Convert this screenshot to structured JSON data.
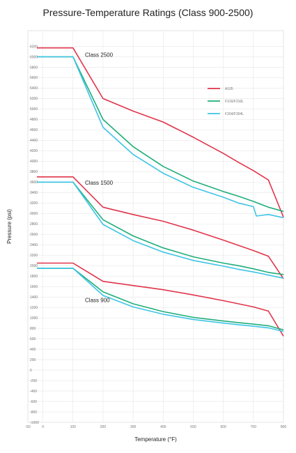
{
  "chart_data": {
    "type": "line",
    "title": "Pressure-Temperature Ratings (Class 900-2500)",
    "xlabel": "Temperature (°F)",
    "ylabel": "Pressure (psi)",
    "xlim": [
      -50,
      800
    ],
    "ylim": [
      -1000,
      6500
    ],
    "x_ticks": [
      -50,
      0,
      100,
      200,
      300,
      400,
      500,
      600,
      700,
      800
    ],
    "x_tick_labels": [
      "-50",
      "0",
      "100",
      "200",
      "300",
      "400",
      "500",
      "600",
      "700",
      "800"
    ],
    "y_ticks": [
      -1000,
      -800,
      -600,
      -400,
      -200,
      0,
      200,
      400,
      600,
      800,
      1000,
      1200,
      1400,
      1600,
      1800,
      2000,
      2200,
      2400,
      2600,
      2800,
      3000,
      3200,
      3400,
      3600,
      3800,
      4000,
      4200,
      4400,
      4600,
      4800,
      5000,
      5200,
      5400,
      5600,
      5800,
      6000,
      6200
    ],
    "grid": true,
    "legend_position": "top-right",
    "annotations": [
      {
        "text": "Class 2500",
        "x": 140,
        "y": 6000
      },
      {
        "text": "Class 1500",
        "x": 140,
        "y": 3550
      },
      {
        "text": "Class 900",
        "x": 140,
        "y": 1300
      }
    ],
    "series": [
      {
        "name": "A105",
        "color": "#e0344a",
        "group": "Class 2500",
        "x": [
          -20,
          100,
          200,
          300,
          400,
          500,
          600,
          650,
          700,
          750,
          800
        ],
        "values": [
          6170,
          6170,
          5200,
          4960,
          4750,
          4460,
          4150,
          3980,
          3820,
          3640,
          2930
        ]
      },
      {
        "name": "F316/F316L",
        "color": "#1fae7a",
        "group": "Class 2500",
        "x": [
          -20,
          100,
          200,
          300,
          400,
          500,
          600,
          650,
          700,
          750,
          800
        ],
        "values": [
          6000,
          6000,
          4800,
          4280,
          3900,
          3620,
          3420,
          3330,
          3230,
          3120,
          3040
        ]
      },
      {
        "name": "F304/F304L",
        "color": "#3ec4e6",
        "group": "Class 2500",
        "x": [
          -20,
          100,
          200,
          300,
          400,
          500,
          600,
          650,
          700,
          710,
          750,
          800
        ],
        "values": [
          6000,
          6000,
          4650,
          4130,
          3770,
          3500,
          3310,
          3200,
          3130,
          2950,
          2980,
          2920
        ]
      },
      {
        "name": "",
        "color": "#e0344a",
        "group": "Class 1500",
        "x": [
          -20,
          100,
          200,
          300,
          400,
          500,
          600,
          650,
          700,
          750,
          800
        ],
        "values": [
          3700,
          3700,
          3120,
          2980,
          2850,
          2680,
          2490,
          2390,
          2290,
          2180,
          1750
        ]
      },
      {
        "name": "",
        "color": "#1fae7a",
        "group": "Class 1500",
        "x": [
          -20,
          100,
          200,
          300,
          400,
          500,
          600,
          650,
          700,
          750,
          800
        ],
        "values": [
          3600,
          3600,
          2880,
          2570,
          2340,
          2170,
          2050,
          2000,
          1940,
          1870,
          1830
        ]
      },
      {
        "name": "",
        "color": "#3ec4e6",
        "group": "Class 1500",
        "x": [
          -20,
          100,
          200,
          300,
          400,
          500,
          600,
          650,
          700,
          750,
          800
        ],
        "values": [
          3600,
          3600,
          2790,
          2480,
          2260,
          2100,
          1990,
          1930,
          1880,
          1820,
          1760
        ]
      },
      {
        "name": "",
        "color": "#e0344a",
        "group": "Class 900",
        "x": [
          -20,
          100,
          200,
          300,
          400,
          500,
          600,
          650,
          700,
          750,
          800
        ],
        "values": [
          2050,
          2050,
          1700,
          1620,
          1540,
          1440,
          1330,
          1270,
          1210,
          1130,
          650
        ]
      },
      {
        "name": "",
        "color": "#1fae7a",
        "group": "Class 900",
        "x": [
          -20,
          100,
          200,
          300,
          400,
          500,
          600,
          650,
          700,
          750,
          800
        ],
        "values": [
          1950,
          1950,
          1500,
          1270,
          1120,
          1010,
          940,
          910,
          880,
          850,
          770
        ]
      },
      {
        "name": "",
        "color": "#3ec4e6",
        "group": "Class 900",
        "x": [
          -20,
          100,
          200,
          300,
          400,
          500,
          600,
          650,
          700,
          750,
          800
        ],
        "values": [
          1950,
          1950,
          1430,
          1210,
          1070,
          970,
          900,
          870,
          840,
          810,
          740
        ]
      }
    ]
  }
}
